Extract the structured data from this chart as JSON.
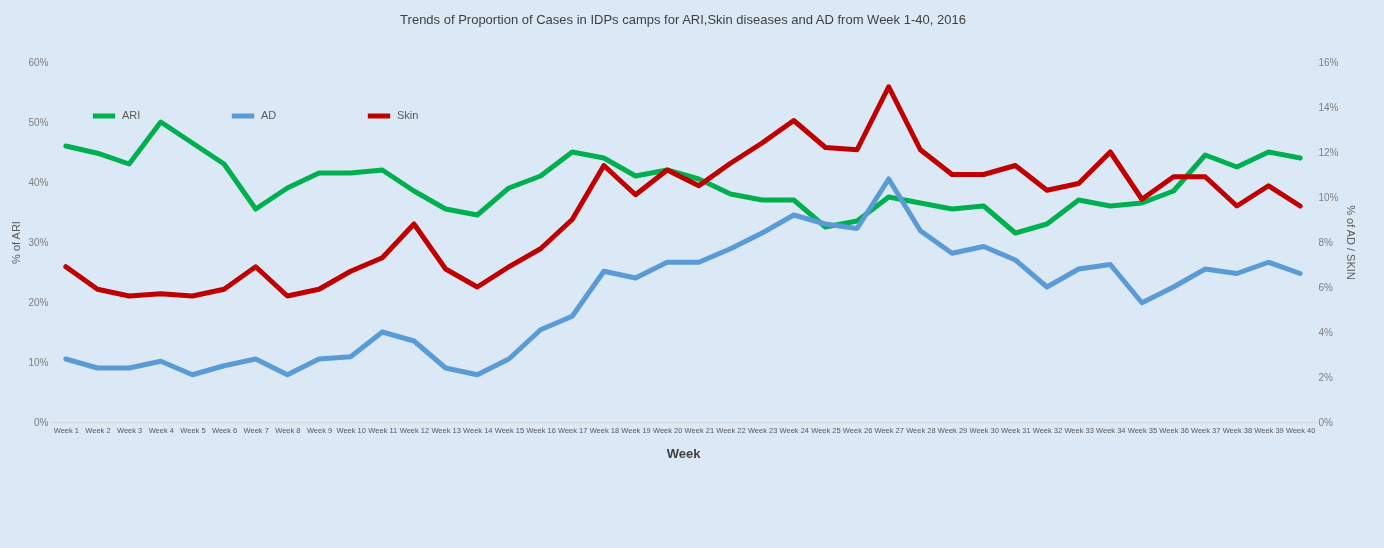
{
  "chart_data": {
    "type": "line",
    "title": "Trends of Proportion of Cases in IDPs camps for ARI,Skin diseases and AD from Week  1-40, 2016",
    "xlabel": "Week",
    "ylabel": "% of ARI",
    "y2label": "% of AD / SKIN",
    "categories": [
      "Week 1",
      "Week 2",
      "Week 3",
      "Week 4",
      "Week 5",
      "Week 6",
      "Week 7",
      "Week 8",
      "Week 9",
      "Week 10",
      "Week 11",
      "Week 12",
      "Week 13",
      "Week 14",
      "Week 15",
      "Week 16",
      "Week 17",
      "Week 18",
      "Week 19",
      "Week 20",
      "Week 21",
      "Week 22",
      "Week 23",
      "Week 24",
      "Week 25",
      "Week 26",
      "Week 27",
      "Week 28",
      "Week 29",
      "Week 30",
      "Week 31",
      "Week 32",
      "Week 33",
      "Week 34",
      "Week 35",
      "Week 36",
      "Week 37",
      "Week 38",
      "Week 39",
      "Week 40"
    ],
    "series": [
      {
        "name": "ARI",
        "color": "#00b050",
        "values": [
          46,
          44.8,
          43,
          50,
          46.5,
          43,
          35.5,
          39,
          41.5,
          41.5,
          42,
          38.5,
          35.5,
          34.5,
          39,
          41,
          45,
          44,
          41,
          42,
          40.5,
          38,
          37,
          37,
          32.5,
          33.5,
          37.5,
          36.5,
          35.5,
          36,
          31.5,
          33,
          37,
          36,
          36.5,
          38.5,
          44.5,
          42.5,
          45,
          44
        ]
      },
      {
        "name": "AD",
        "color": "#5b9bd5",
        "axis": "y2",
        "values": [
          2.8,
          2.4,
          2.4,
          2.7,
          2.1,
          2.5,
          2.8,
          2.1,
          2.8,
          2.9,
          4.0,
          3.6,
          2.4,
          2.1,
          2.8,
          4.1,
          4.7,
          6.7,
          6.4,
          7.1,
          7.1,
          7.7,
          8.4,
          9.2,
          8.8,
          8.6,
          10.8,
          8.5,
          7.5,
          7.8,
          7.2,
          6.0,
          6.8,
          7.0,
          5.3,
          6.0,
          6.8,
          6.6,
          7.1,
          6.6
        ]
      },
      {
        "name": "Skin",
        "color": "#c00000",
        "axis": "y2",
        "values": [
          6.9,
          5.9,
          5.6,
          5.7,
          5.6,
          5.9,
          6.9,
          5.6,
          5.9,
          6.7,
          7.3,
          8.8,
          6.8,
          6.0,
          6.9,
          7.7,
          9.0,
          11.4,
          10.1,
          11.2,
          10.5,
          11.5,
          12.4,
          13.4,
          12.2,
          12.1,
          14.9,
          12.1,
          11.0,
          11.0,
          11.4,
          10.3,
          10.6,
          12.0,
          9.9,
          10.9,
          10.9,
          9.6,
          10.5,
          9.6
        ]
      }
    ],
    "ylim": [
      0,
      60
    ],
    "yticks": [
      {
        "value": 0,
        "label": "0%"
      },
      {
        "value": 10,
        "label": "10%"
      },
      {
        "value": 20,
        "label": "20%"
      },
      {
        "value": 30,
        "label": "30%"
      },
      {
        "value": 40,
        "label": "40%"
      },
      {
        "value": 50,
        "label": "50%"
      },
      {
        "value": 60,
        "label": "60%"
      }
    ],
    "y2lim": [
      0,
      16
    ],
    "y2ticks": [
      {
        "value": 0,
        "label": "0%"
      },
      {
        "value": 2,
        "label": "2%"
      },
      {
        "value": 4,
        "label": "4%"
      },
      {
        "value": 6,
        "label": "6%"
      },
      {
        "value": 8,
        "label": "8%"
      },
      {
        "value": 10,
        "label": "10%"
      },
      {
        "value": 12,
        "label": "12%"
      },
      {
        "value": 14,
        "label": "14%"
      },
      {
        "value": 16,
        "label": "16%"
      }
    ],
    "grid": false,
    "legend": "top left",
    "marker": "none",
    "line_style": "solid"
  }
}
